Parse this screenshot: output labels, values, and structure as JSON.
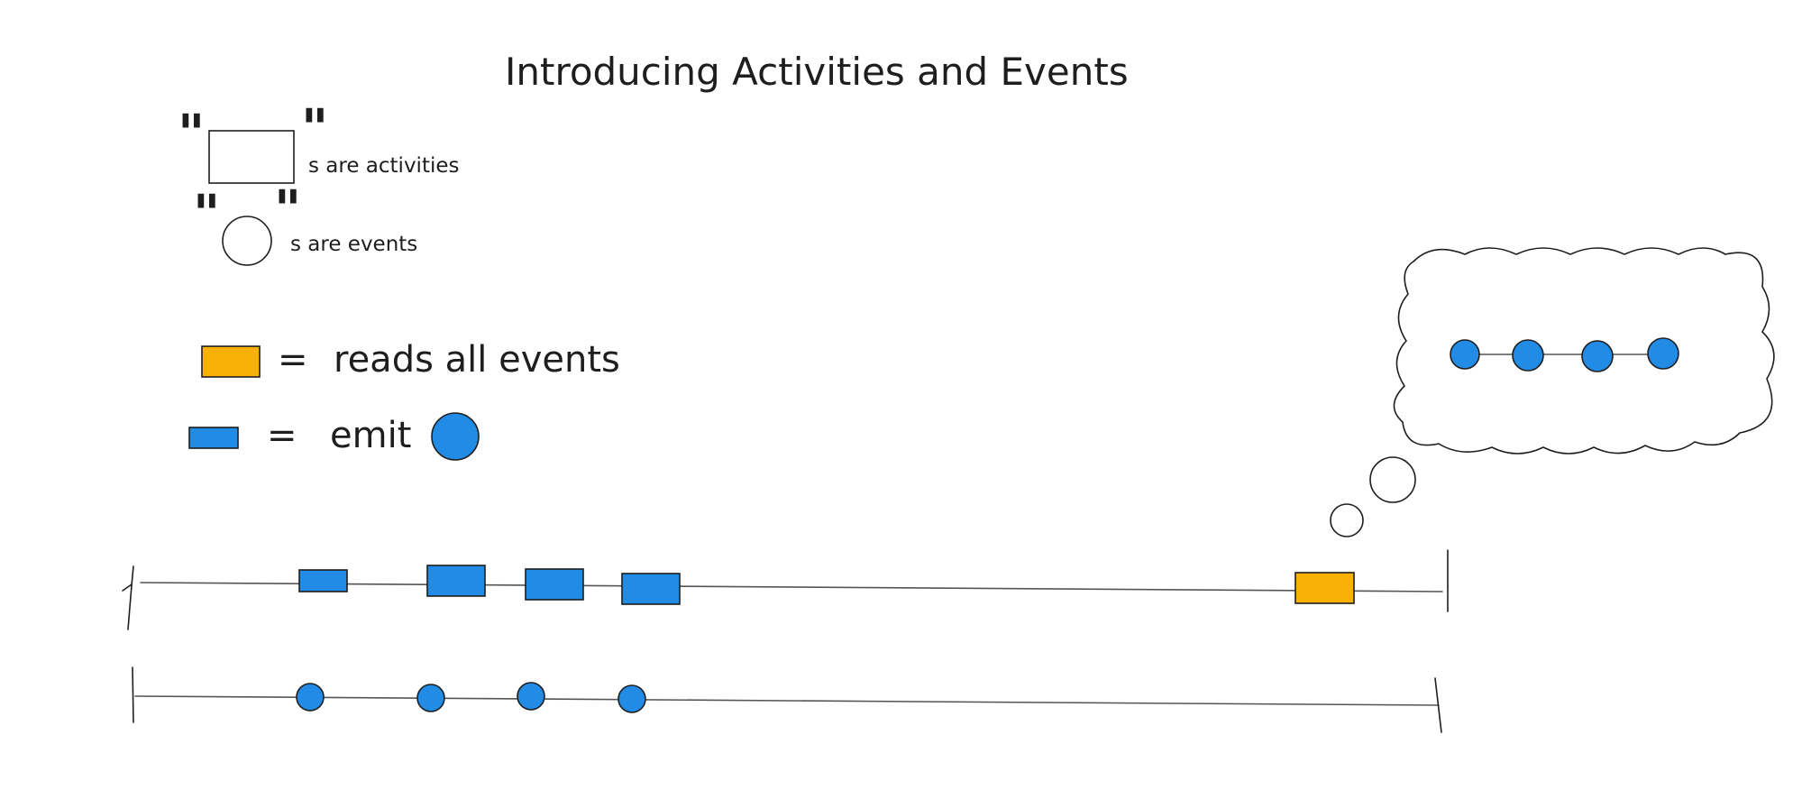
{
  "title": "Introducing Activities and Events",
  "legend": {
    "open_quote": "\"",
    "close_quote": "\"",
    "activities_text": "s are activities",
    "events_text": "s are events",
    "reads_equals": "=",
    "reads_text": "reads all events",
    "emit_equals": "=",
    "emit_text": "emit"
  },
  "colors": {
    "blue": "#228be6",
    "orange": "#fab005",
    "stroke": "#1e1e1e"
  }
}
